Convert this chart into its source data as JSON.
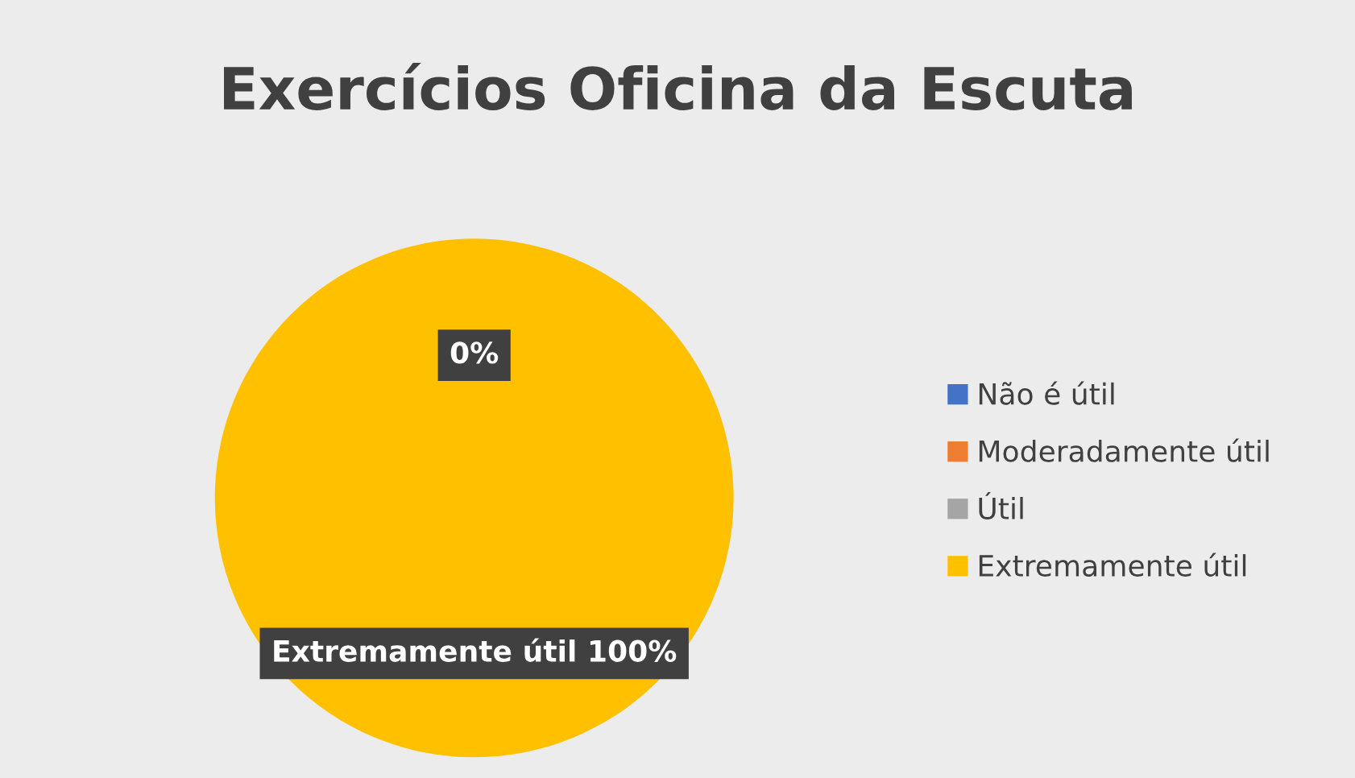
{
  "chart_data": {
    "type": "pie",
    "title": "Exercícios Oficina da Escuta",
    "categories": [
      "Não é útil",
      "Moderadamente útil",
      "Útil",
      "Extremamente útil"
    ],
    "values": [
      0,
      0,
      0,
      100
    ],
    "colors": [
      "#4472c4",
      "#ed7d31",
      "#a5a5a5",
      "#ffc000"
    ],
    "value_labels": [
      "0%",
      null,
      null,
      "Extremamente útil 100%"
    ],
    "legend": "right"
  }
}
